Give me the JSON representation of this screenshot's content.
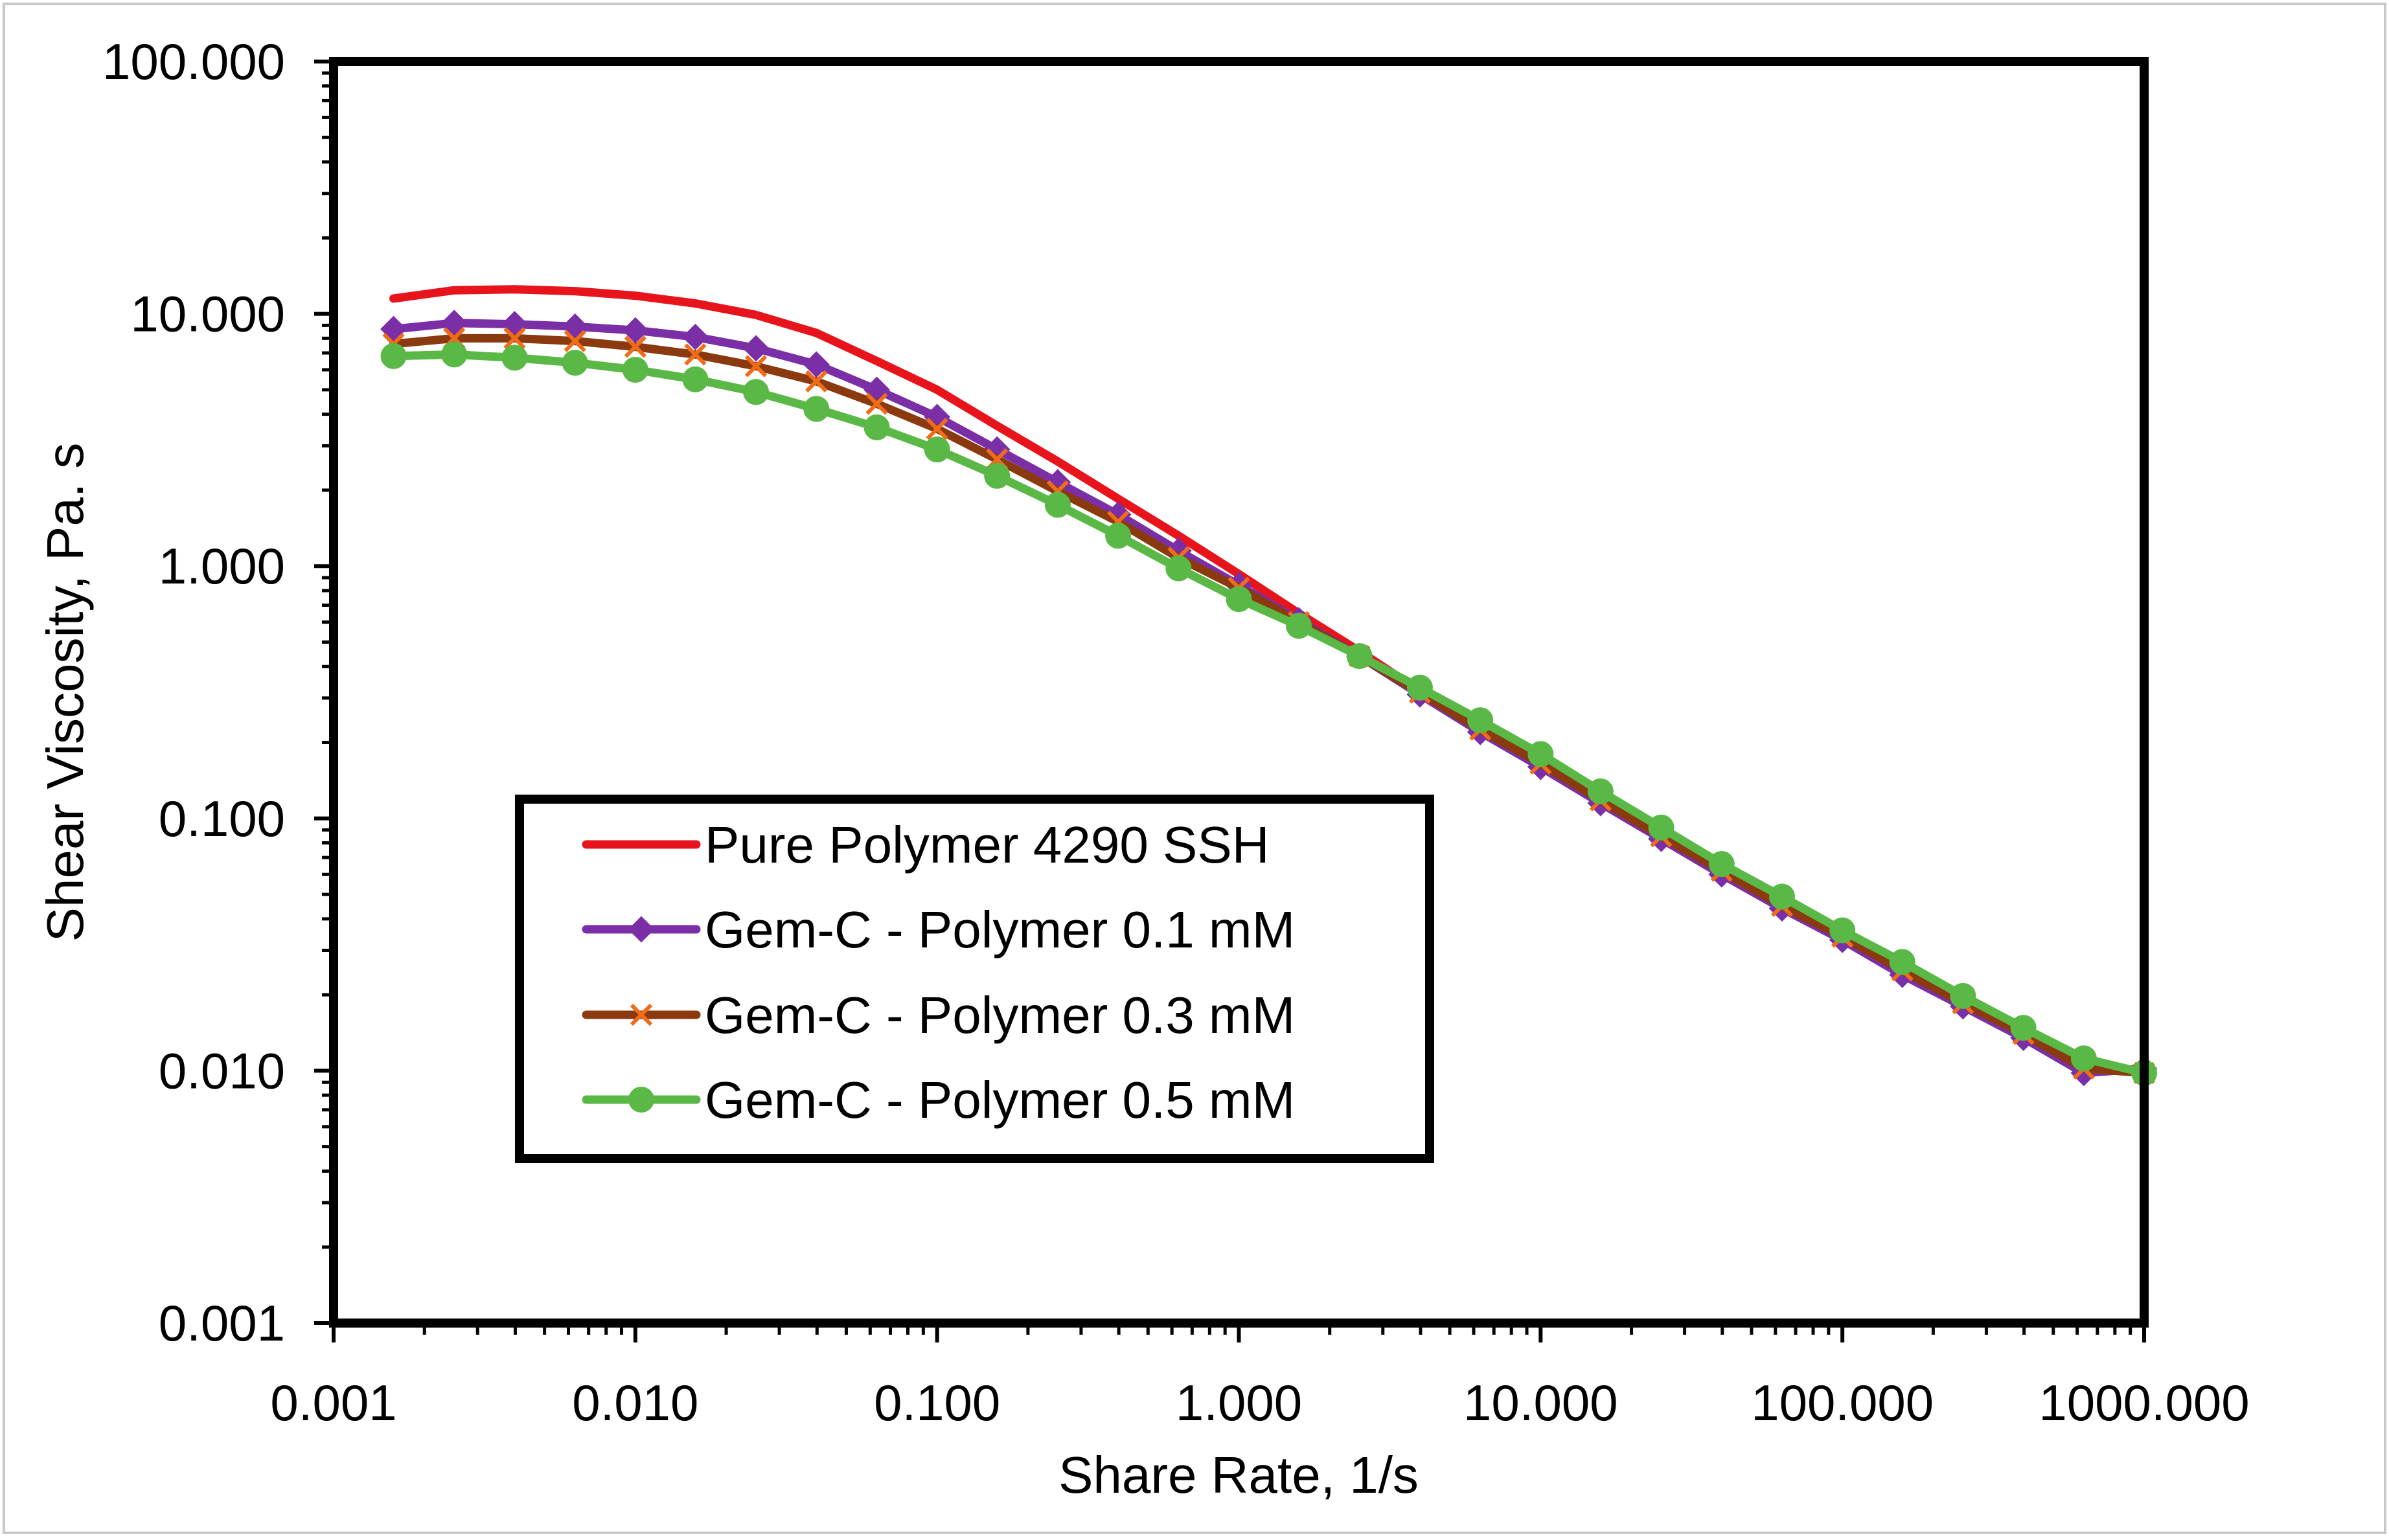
{
  "chart_data": {
    "type": "line",
    "title": "",
    "xlabel": "Share Rate, 1/s",
    "ylabel": "Shear Viscosity, Pa. s",
    "xscale": "log",
    "yscale": "log",
    "xlim": [
      0.001,
      1000
    ],
    "ylim": [
      0.001,
      100
    ],
    "xticks": [
      "0.001",
      "0.010",
      "0.100",
      "1.000",
      "10.000",
      "100.000",
      "1000.000"
    ],
    "yticks": [
      "0.001",
      "0.010",
      "0.100",
      "1.000",
      "10.000",
      "100.000"
    ],
    "legend_position": "lower-left",
    "x": [
      0.00158,
      0.00251,
      0.00398,
      0.00631,
      0.01,
      0.0158,
      0.0251,
      0.0398,
      0.0631,
      0.1,
      0.158,
      0.251,
      0.398,
      0.631,
      1.0,
      1.58,
      2.51,
      3.98,
      6.31,
      10.0,
      15.8,
      25.1,
      39.8,
      63.1,
      100,
      158,
      251,
      398,
      631,
      1000
    ],
    "series": [
      {
        "name": "Pure Polymer 4290 SSH",
        "color": "#e8141c",
        "marker": "none",
        "values": [
          11.5,
          12.4,
          12.5,
          12.3,
          11.8,
          11.0,
          9.9,
          8.4,
          6.5,
          5.0,
          3.6,
          2.6,
          1.85,
          1.32,
          0.93,
          0.65,
          0.46,
          0.32,
          0.23,
          0.165,
          0.115,
          0.083,
          0.06,
          0.044,
          0.033,
          0.024,
          0.018,
          0.0135,
          0.0098,
          0.0102
        ]
      },
      {
        "name": "Gem-C - Polymer 0.1 mM",
        "color": "#7b2fa7",
        "marker": "diamond",
        "values": [
          8.7,
          9.2,
          9.1,
          8.9,
          8.6,
          8.1,
          7.3,
          6.3,
          5.0,
          3.9,
          2.9,
          2.15,
          1.6,
          1.15,
          0.84,
          0.61,
          0.44,
          0.31,
          0.22,
          0.16,
          0.115,
          0.083,
          0.06,
          0.044,
          0.033,
          0.024,
          0.018,
          0.0135,
          0.0098,
          0.0102
        ]
      },
      {
        "name": "Gem-C - Polymer 0.3 mM",
        "color": "#8b3a10",
        "marker": "x",
        "markerColor": "#ef6c1a",
        "values": [
          7.6,
          8.0,
          8.0,
          7.8,
          7.4,
          6.9,
          6.2,
          5.4,
          4.4,
          3.5,
          2.65,
          1.98,
          1.5,
          1.08,
          0.82,
          0.6,
          0.44,
          0.315,
          0.225,
          0.165,
          0.118,
          0.085,
          0.062,
          0.045,
          0.034,
          0.025,
          0.0185,
          0.014,
          0.0102,
          0.0098
        ]
      },
      {
        "name": "Gem-C - Polymer 0.5 mM",
        "color": "#5ab946",
        "marker": "circle",
        "values": [
          6.8,
          6.9,
          6.7,
          6.4,
          6.0,
          5.5,
          4.9,
          4.2,
          3.55,
          2.9,
          2.28,
          1.75,
          1.32,
          0.98,
          0.74,
          0.58,
          0.44,
          0.33,
          0.245,
          0.18,
          0.128,
          0.092,
          0.066,
          0.049,
          0.036,
          0.027,
          0.0198,
          0.0148,
          0.0112,
          0.0098
        ]
      }
    ]
  }
}
